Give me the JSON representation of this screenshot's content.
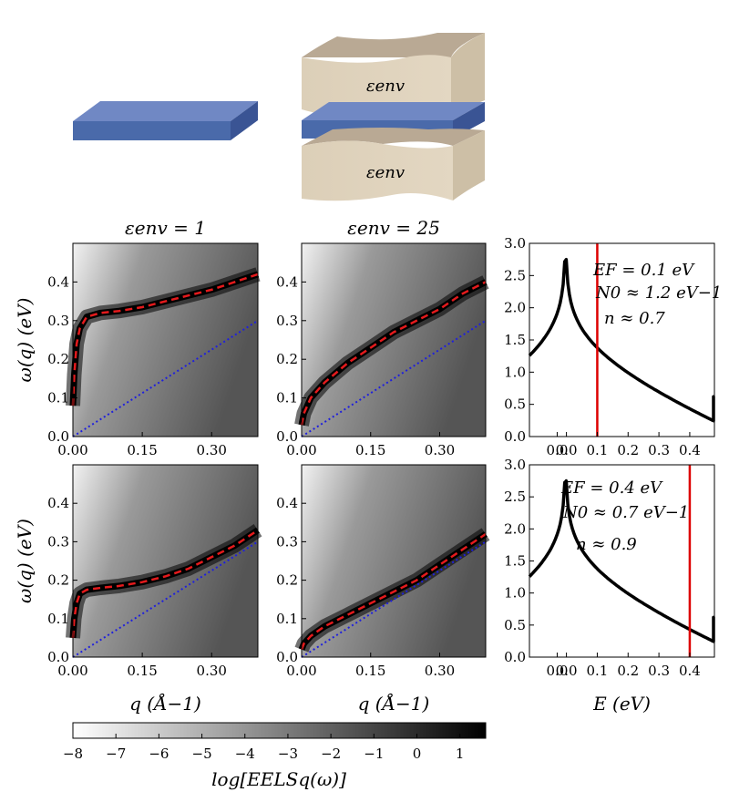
{
  "illustration": {
    "env_label_top": "εenv",
    "env_label_bottom": "εenv"
  },
  "colors": {
    "sheet": "#4a6aaa",
    "env": "#dccfb8",
    "dispersion": "#e41a1c",
    "light_line": "#1f1fdd",
    "fermi_line": "#dd0000",
    "dos": "#000000"
  },
  "chart_data": [
    {
      "type": "heatmap",
      "id": "map-top-left",
      "title": "εenv = 1",
      "xlabel": "",
      "ylabel": "ω(q) (eV)",
      "xlim": [
        0,
        0.4
      ],
      "ylim": [
        0,
        0.5
      ],
      "xticks": [
        "0.00",
        "0.15",
        "0.30"
      ],
      "yticks": [
        "0.0",
        "0.1",
        "0.2",
        "0.3",
        "0.4"
      ],
      "dispersion": {
        "q": [
          0.0,
          0.003,
          0.008,
          0.015,
          0.03,
          0.06,
          0.1,
          0.15,
          0.2,
          0.25,
          0.3,
          0.35,
          0.4
        ],
        "omega": [
          0.08,
          0.16,
          0.24,
          0.28,
          0.31,
          0.32,
          0.325,
          0.335,
          0.35,
          0.365,
          0.38,
          0.4,
          0.42
        ]
      },
      "light_line": {
        "q": [
          0.0,
          0.4
        ],
        "omega": [
          0.0,
          0.3
        ]
      }
    },
    {
      "type": "heatmap",
      "id": "map-top-middle",
      "title": "εenv = 25",
      "xlabel": "",
      "ylabel": "",
      "xlim": [
        0,
        0.4
      ],
      "ylim": [
        0,
        0.5
      ],
      "xticks": [
        "0.00",
        "0.15",
        "0.30"
      ],
      "yticks": [
        "0.0",
        "0.1",
        "0.2",
        "0.3",
        "0.4"
      ],
      "dispersion": {
        "q": [
          0.0,
          0.005,
          0.02,
          0.05,
          0.1,
          0.15,
          0.2,
          0.25,
          0.3,
          0.35,
          0.4
        ],
        "omega": [
          0.03,
          0.06,
          0.1,
          0.14,
          0.19,
          0.23,
          0.27,
          0.3,
          0.33,
          0.37,
          0.4
        ]
      },
      "light_line": {
        "q": [
          0.0,
          0.4
        ],
        "omega": [
          0.0,
          0.3
        ]
      }
    },
    {
      "type": "line",
      "id": "dos-top",
      "title": "",
      "xlabel": "",
      "ylabel": "",
      "xlim": [
        -0.12,
        0.48
      ],
      "ylim": [
        0,
        3.0
      ],
      "xticks": [
        "0.0",
        "0.0",
        "0.1",
        "0.2",
        "0.3",
        "0.4"
      ],
      "yticks": [
        "0.0",
        "0.5",
        "1.0",
        "1.5",
        "2.0",
        "2.5",
        "3.0"
      ],
      "fermi_energy": 0.1,
      "annotations": [
        "EF = 0.1 eV",
        "N0 ≈ 1.2 eV−1",
        "n ≈ 0.7"
      ]
    },
    {
      "type": "heatmap",
      "id": "map-bottom-left",
      "title": "",
      "xlabel": "q (Å−1)",
      "ylabel": "ω(q) (eV)",
      "xlim": [
        0,
        0.4
      ],
      "ylim": [
        0,
        0.5
      ],
      "xticks": [
        "0.00",
        "0.15",
        "0.30"
      ],
      "yticks": [
        "0.0",
        "0.1",
        "0.2",
        "0.3",
        "0.4"
      ],
      "dispersion": {
        "q": [
          0.0,
          0.003,
          0.008,
          0.015,
          0.03,
          0.06,
          0.1,
          0.15,
          0.2,
          0.25,
          0.3,
          0.35,
          0.4
        ],
        "omega": [
          0.05,
          0.1,
          0.14,
          0.165,
          0.175,
          0.18,
          0.185,
          0.195,
          0.21,
          0.23,
          0.26,
          0.29,
          0.33
        ]
      },
      "light_line": {
        "q": [
          0.0,
          0.4
        ],
        "omega": [
          0.0,
          0.3
        ]
      }
    },
    {
      "type": "heatmap",
      "id": "map-bottom-middle",
      "title": "",
      "xlabel": "q (Å−1)",
      "ylabel": "",
      "xlim": [
        0,
        0.4
      ],
      "ylim": [
        0,
        0.5
      ],
      "xticks": [
        "0.00",
        "0.15",
        "0.30"
      ],
      "yticks": [
        "0.0",
        "0.1",
        "0.2",
        "0.3",
        "0.4"
      ],
      "dispersion": {
        "q": [
          0.0,
          0.005,
          0.02,
          0.05,
          0.1,
          0.15,
          0.2,
          0.25,
          0.3,
          0.35,
          0.4
        ],
        "omega": [
          0.02,
          0.035,
          0.055,
          0.08,
          0.11,
          0.14,
          0.17,
          0.2,
          0.24,
          0.28,
          0.32
        ]
      },
      "light_line": {
        "q": [
          0.0,
          0.4
        ],
        "omega": [
          0.0,
          0.3
        ]
      }
    },
    {
      "type": "line",
      "id": "dos-bottom",
      "title": "",
      "xlabel": "E (eV)",
      "ylabel": "",
      "xlim": [
        -0.12,
        0.48
      ],
      "ylim": [
        0,
        3.0
      ],
      "xticks": [
        "0.0",
        "0.0",
        "0.1",
        "0.2",
        "0.3",
        "0.4"
      ],
      "yticks": [
        "0.0",
        "0.5",
        "1.0",
        "1.5",
        "2.0",
        "2.5",
        "3.0"
      ],
      "fermi_energy": 0.4,
      "annotations": [
        "EF = 0.4 eV",
        "N0 ≈ 0.7 eV−1",
        "n ≈ 0.9"
      ]
    },
    {
      "type": "colorbar",
      "id": "colorbar",
      "label": "log[EELSq(ω)]",
      "range": [
        -8,
        1.6
      ],
      "ticks": [
        "−8",
        "−7",
        "−6",
        "−5",
        "−4",
        "−3",
        "−2",
        "−1",
        "0",
        "1"
      ]
    }
  ]
}
